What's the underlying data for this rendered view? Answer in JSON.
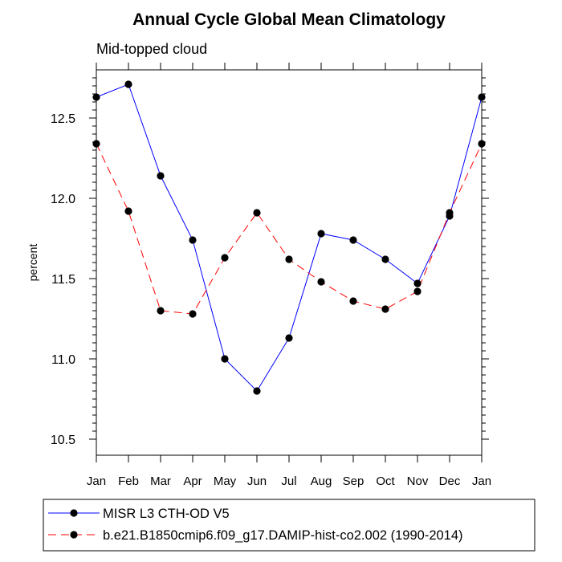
{
  "chart_data": {
    "type": "line",
    "title": "Annual Cycle Global Mean Climatology",
    "subtitle": "Mid-topped cloud",
    "xlabel": "",
    "ylabel": "percent",
    "categories": [
      "Jan",
      "Feb",
      "Mar",
      "Apr",
      "May",
      "Jun",
      "Jul",
      "Aug",
      "Sep",
      "Oct",
      "Nov",
      "Dec",
      "Jan"
    ],
    "ylim": [
      10.4,
      12.8
    ],
    "yticks": [
      10.5,
      11.0,
      11.5,
      12.0,
      12.5
    ],
    "ytick_labels": [
      "10.5",
      "11.0",
      "11.5",
      "12.0",
      "12.5"
    ],
    "series": [
      {
        "name": "MISR L3 CTH-OD V5",
        "color": "#0000ff",
        "dash": "solid",
        "values": [
          12.63,
          12.71,
          12.14,
          11.74,
          11.0,
          10.8,
          11.13,
          11.78,
          11.74,
          11.62,
          11.47,
          11.89,
          12.63
        ]
      },
      {
        "name": "b.e21.B1850cmip6.f09_g17.DAMIP-hist-co2.002 (1990-2014)",
        "color": "#ff0000",
        "dash": "dashed",
        "values": [
          12.34,
          11.92,
          11.3,
          11.28,
          11.63,
          11.91,
          11.62,
          11.48,
          11.36,
          11.31,
          11.42,
          11.91,
          12.34
        ]
      }
    ],
    "legend": "bottom"
  }
}
